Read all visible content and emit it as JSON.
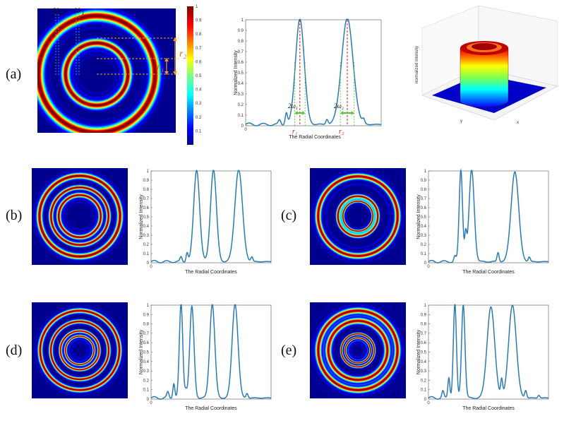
{
  "panel_labels": [
    "(a)",
    "(b)",
    "(c)",
    "(d)",
    "(e)"
  ],
  "annotations": {
    "omega2": "ω₂",
    "omega1": "ω₁",
    "r2": "r₂",
    "r1": "r₁",
    "two_omega1": "2ω₁",
    "two_omega2": "2ω₂",
    "r1_axis": "r₁",
    "r2_axis": "r₂"
  },
  "colorbar_ticks": [
    "1",
    "0.9",
    "0.8",
    "0.7",
    "0.6",
    "0.5",
    "0.4",
    "0.3",
    "0.2",
    "0.1"
  ],
  "surface": {
    "zlabel": "normalized intensity",
    "xlabel": "x",
    "ylabel": "y"
  },
  "colors": {
    "background_map": "#00008f",
    "curve": "#2a7bb3",
    "dashed_red": "#e02020",
    "dashed_orange": "#f0a020",
    "green_arrow": "#5fbf3f",
    "cyan_dash": "#22c4c4"
  },
  "chart_data": [
    {
      "id": "a",
      "type": "line",
      "xlabel": "The Radial Coordinates",
      "ylabel": "Normalized Intensity",
      "ylim": [
        0,
        1
      ],
      "yticks": [
        "0",
        "0.1",
        "0.2",
        "0.3",
        "0.4",
        "0.5",
        "0.6",
        "0.7",
        "0.8",
        "0.9",
        "1"
      ],
      "x_zero": "0",
      "peaks": [
        {
          "pos": 0.4,
          "width": 0.045,
          "height": 1.0
        },
        {
          "pos": 0.75,
          "width": 0.06,
          "height": 1.0
        }
      ],
      "side_lobes": [
        {
          "pos": 0.3,
          "height": 0.11
        },
        {
          "pos": 0.25,
          "height": 0.04
        },
        {
          "pos": 0.6,
          "height": 0.05
        },
        {
          "pos": 0.87,
          "height": 0.04
        }
      ]
    },
    {
      "id": "b",
      "type": "line",
      "xlabel": "The Radial Coordinates",
      "ylabel": "Normalized Intensity",
      "ylim": [
        0,
        1
      ],
      "yticks": [
        "0",
        "0.1",
        "0.2",
        "0.3",
        "0.4",
        "0.5",
        "0.6",
        "0.7",
        "0.8",
        "0.9",
        "1"
      ],
      "x_zero": "0",
      "peaks": [
        {
          "pos": 0.38,
          "width": 0.035,
          "height": 1.0
        },
        {
          "pos": 0.52,
          "width": 0.035,
          "height": 1.0
        },
        {
          "pos": 0.73,
          "width": 0.045,
          "height": 1.0
        }
      ],
      "side_lobes": [
        {
          "pos": 0.3,
          "height": 0.1
        },
        {
          "pos": 0.25,
          "height": 0.05
        },
        {
          "pos": 0.84,
          "height": 0.05
        }
      ]
    },
    {
      "id": "c",
      "type": "line",
      "xlabel": "The Radial Coordinates",
      "ylabel": "Normalized Intensity",
      "ylim": [
        0,
        1
      ],
      "yticks": [
        "0",
        "0.1",
        "0.2",
        "0.3",
        "0.4",
        "0.5",
        "0.6",
        "0.7",
        "0.8",
        "0.9",
        "1"
      ],
      "x_zero": "0",
      "peaks": [
        {
          "pos": 0.27,
          "width": 0.02,
          "height": 1.0
        },
        {
          "pos": 0.36,
          "width": 0.03,
          "height": 1.0
        },
        {
          "pos": 0.72,
          "width": 0.045,
          "height": 0.98
        }
      ],
      "side_lobes": [
        {
          "pos": 0.31,
          "height": 0.28
        },
        {
          "pos": 0.22,
          "height": 0.06
        },
        {
          "pos": 0.58,
          "height": 0.1
        },
        {
          "pos": 0.84,
          "height": 0.05
        }
      ]
    },
    {
      "id": "d",
      "type": "line",
      "xlabel": "The Radial Coordinates",
      "ylabel": "Normalized Intensity",
      "ylim": [
        0,
        1
      ],
      "yticks": [
        "0",
        "0.1",
        "0.2",
        "0.3",
        "0.4",
        "0.5",
        "0.6",
        "0.7",
        "0.8",
        "0.9",
        "1"
      ],
      "x_zero": "0",
      "peaks": [
        {
          "pos": 0.25,
          "width": 0.02,
          "height": 1.0
        },
        {
          "pos": 0.34,
          "width": 0.025,
          "height": 0.97
        },
        {
          "pos": 0.51,
          "width": 0.03,
          "height": 1.0
        },
        {
          "pos": 0.7,
          "width": 0.035,
          "height": 1.0
        }
      ],
      "side_lobes": [
        {
          "pos": 0.19,
          "height": 0.16
        },
        {
          "pos": 0.14,
          "height": 0.06
        },
        {
          "pos": 0.29,
          "height": 0.08
        },
        {
          "pos": 0.8,
          "height": 0.05
        }
      ]
    },
    {
      "id": "e",
      "type": "line",
      "xlabel": "The Radial Coordinates",
      "ylabel": "Normalized Intensity",
      "ylim": [
        0,
        1
      ],
      "yticks": [
        "0",
        "0.1",
        "0.2",
        "0.3",
        "0.4",
        "0.5",
        "0.6",
        "0.7",
        "0.8",
        "0.9",
        "1"
      ],
      "x_zero": "0",
      "peaks": [
        {
          "pos": 0.22,
          "width": 0.018,
          "height": 1.0
        },
        {
          "pos": 0.29,
          "width": 0.02,
          "height": 1.0
        },
        {
          "pos": 0.52,
          "width": 0.045,
          "height": 0.97
        },
        {
          "pos": 0.7,
          "width": 0.045,
          "height": 0.99
        }
      ],
      "side_lobes": [
        {
          "pos": 0.17,
          "height": 0.22
        },
        {
          "pos": 0.12,
          "height": 0.07
        },
        {
          "pos": 0.61,
          "height": 0.18
        },
        {
          "pos": 0.81,
          "height": 0.08
        },
        {
          "pos": 0.92,
          "height": 0.03
        }
      ]
    }
  ]
}
